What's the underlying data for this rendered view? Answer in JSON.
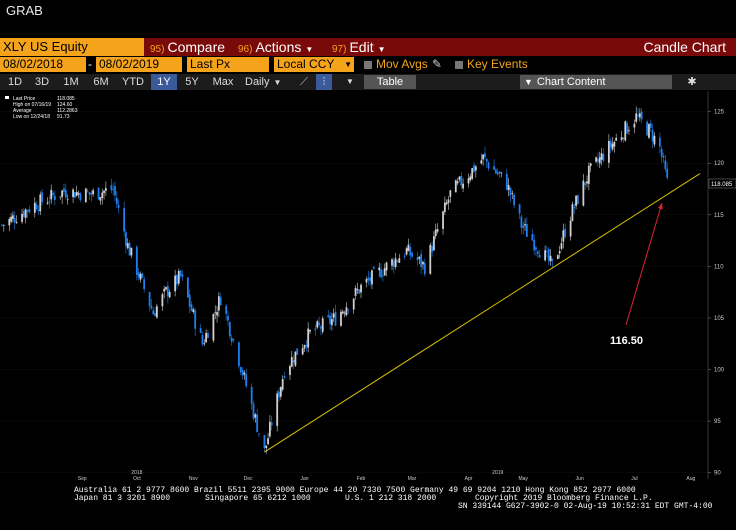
{
  "app": {
    "title": "GRAB"
  },
  "toolbar": {
    "ticker": "XLY US Equity",
    "compare": {
      "num": "95)",
      "label": "Compare"
    },
    "actions": {
      "num": "96)",
      "label": "Actions"
    },
    "edit": {
      "num": "97)",
      "label": "Edit"
    },
    "chart_type": "Candle Chart"
  },
  "params": {
    "start_date": "08/02/2018",
    "end_date": "08/02/2019",
    "field": "Last Px",
    "currency": "Local CCY",
    "mov_avgs": "Mov Avgs",
    "key_events": "Key Events"
  },
  "ranges": {
    "items": [
      "1D",
      "3D",
      "1M",
      "6M",
      "YTD",
      "1Y",
      "5Y",
      "Max"
    ],
    "selected": "1Y",
    "frequency": "Daily",
    "table_label": "Table",
    "chart_content_label": "Chart Content"
  },
  "legend": {
    "last_price_label": "Last Price",
    "last_price_value": "118.085",
    "high_label": "High on 07/16/19",
    "high_value": "124.60",
    "average_label": "Average",
    "average_value": "112.2863",
    "low_label": "Low on 12/24/18",
    "low_value": "91.73"
  },
  "annotation": {
    "text": "116.50"
  },
  "last_price_tag": "118.085",
  "chart_data": {
    "type": "candlestick",
    "x_labels": [
      "Sep",
      "Oct",
      "Nov",
      "Dec",
      "Jan",
      "Feb",
      "Mar",
      "Apr",
      "May",
      "Jun",
      "Jul",
      "Aug"
    ],
    "year_labels": [
      "2018",
      "2019"
    ],
    "y_ticks": [
      90,
      95,
      100,
      105,
      110,
      115,
      120,
      125
    ],
    "ylim": [
      89,
      127
    ],
    "approx_close_path": [
      {
        "x": "2018-08-02",
        "y": 114.0
      },
      {
        "x": "2018-08-20",
        "y": 116.0
      },
      {
        "x": "2018-09-05",
        "y": 117.3
      },
      {
        "x": "2018-09-20",
        "y": 117.0
      },
      {
        "x": "2018-10-02",
        "y": 117.5
      },
      {
        "x": "2018-10-10",
        "y": 112.0
      },
      {
        "x": "2018-10-24",
        "y": 105.5
      },
      {
        "x": "2018-10-31",
        "y": 107.5
      },
      {
        "x": "2018-11-08",
        "y": 109.0
      },
      {
        "x": "2018-11-20",
        "y": 102.5
      },
      {
        "x": "2018-11-30",
        "y": 107.0
      },
      {
        "x": "2018-12-10",
        "y": 101.0
      },
      {
        "x": "2018-12-24",
        "y": 92.0
      },
      {
        "x": "2019-01-04",
        "y": 100.0
      },
      {
        "x": "2019-01-18",
        "y": 103.5
      },
      {
        "x": "2019-02-01",
        "y": 105.0
      },
      {
        "x": "2019-02-15",
        "y": 108.0
      },
      {
        "x": "2019-03-01",
        "y": 110.0
      },
      {
        "x": "2019-03-12",
        "y": 111.5
      },
      {
        "x": "2019-03-22",
        "y": 110.0
      },
      {
        "x": "2019-04-05",
        "y": 117.0
      },
      {
        "x": "2019-04-23",
        "y": 120.5
      },
      {
        "x": "2019-05-06",
        "y": 118.0
      },
      {
        "x": "2019-05-14",
        "y": 114.0
      },
      {
        "x": "2019-05-31",
        "y": 110.0
      },
      {
        "x": "2019-06-10",
        "y": 115.0
      },
      {
        "x": "2019-06-20",
        "y": 119.0
      },
      {
        "x": "2019-07-01",
        "y": 121.5
      },
      {
        "x": "2019-07-16",
        "y": 124.5
      },
      {
        "x": "2019-07-24",
        "y": 123.0
      },
      {
        "x": "2019-07-29",
        "y": 121.5
      },
      {
        "x": "2019-08-02",
        "y": 118.1
      }
    ],
    "trendline": [
      {
        "x": "2018-12-24",
        "y": 92.0
      },
      {
        "x": "2019-08-20",
        "y": 119.0
      }
    ],
    "colors": {
      "up": "#d0d0d0",
      "down": "#1e7ff0",
      "trendline": "#d8c400",
      "annotation_arrow": "#e0223a"
    }
  },
  "footer": {
    "line1": "Australia 61 2 9777 8600 Brazil 5511 2395 9000 Europe 44 20 7330 7500 Germany 49 69 9204 1210 Hong Kong 852 2977 6000",
    "line2a": "Japan 81 3 3201 8900",
    "line2b": "Singapore 65 6212 1000",
    "line2c": "U.S. 1 212 318 2000",
    "line2d": "Copyright 2019 Bloomberg Finance L.P.",
    "line3": "SN 339144 G627-3902-0 02-Aug-19 10:52:31 EDT  GMT-4:00"
  }
}
